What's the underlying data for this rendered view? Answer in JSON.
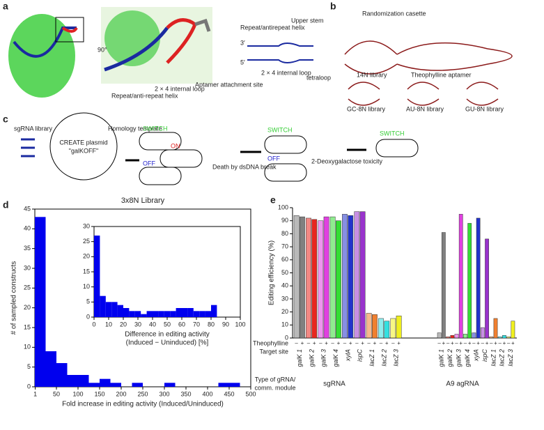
{
  "panels": [
    "a",
    "b",
    "c",
    "d",
    "e"
  ],
  "panel_a": {
    "helix": "Repeat/anti-repeat helix",
    "loop": "2 × 4 internal loop",
    "attach": "Aptamer attachment site",
    "rot": "90°",
    "helix2": "Repeat/antirepeat helix",
    "upper": "Upper stem",
    "loop2": "2 × 4 internal loop",
    "tetra": "tetraloop",
    "p3": "3′",
    "p5": "5′"
  },
  "panel_b": {
    "rand": "Randomization casette",
    "lib14": "14N library",
    "aptamer": "Theophylline aptamer",
    "gc": "GC-8N library",
    "au": "AU-8N library",
    "gu": "GU-8N library"
  },
  "panel_c": {
    "lib": "sgRNA library",
    "homology": "Homology template",
    "plasmid": "CREATE plasmid",
    "galk": "\"galKOFF\"",
    "switch": "SWITCH",
    "on": "ON",
    "off": "OFF",
    "death": "Death by dsDNA break",
    "toxicity": "2-Deoxygalactose toxicity"
  },
  "chart_data": [
    {
      "type": "histogram",
      "title": "3x8N Library",
      "xlabel": "Fold increase in editing activity (Induced/Uninduced)",
      "ylabel": "# of sampled constructs",
      "color": "#0000ee",
      "bins": [
        0,
        25,
        50,
        75,
        100,
        125,
        150,
        175,
        200,
        225,
        250,
        275,
        300,
        325,
        350,
        375,
        400,
        425,
        450,
        475,
        500
      ],
      "values": [
        43,
        9,
        6,
        3,
        3,
        1,
        2,
        1,
        0,
        1,
        0,
        0,
        1,
        0,
        0,
        0,
        0,
        1,
        1,
        0
      ],
      "xlim": [
        0,
        500
      ],
      "xticks": [
        1,
        50,
        100,
        150,
        200,
        250,
        300,
        350,
        400,
        450,
        500
      ],
      "ylim": [
        0,
        45
      ],
      "yticks": [
        0,
        5,
        10,
        15,
        20,
        25,
        30,
        35,
        40,
        45
      ]
    },
    {
      "type": "histogram",
      "xlabel": "Difference in editing activity",
      "xlabel2": "(Induced − Uninduced) [%]",
      "color": "#0000ee",
      "bins": [
        0,
        4,
        8,
        12,
        16,
        20,
        24,
        28,
        32,
        36,
        40,
        44,
        48,
        52,
        56,
        60,
        64,
        68,
        72,
        76,
        80,
        84
      ],
      "values": [
        27,
        7,
        5,
        5,
        4,
        3,
        2,
        2,
        1,
        2,
        2,
        2,
        2,
        2,
        3,
        3,
        3,
        2,
        2,
        2,
        4
      ],
      "xlim": [
        0,
        100
      ],
      "xticks": [
        0,
        10,
        20,
        30,
        40,
        50,
        60,
        70,
        80,
        90,
        100
      ],
      "ylim": [
        0,
        30
      ],
      "yticks": [
        0,
        5,
        10,
        15,
        20,
        25,
        30
      ]
    },
    {
      "type": "bar",
      "ylabel": "Editing efficiency (%)",
      "ylim": [
        0,
        100
      ],
      "yticks": [
        0,
        10,
        20,
        30,
        40,
        50,
        60,
        70,
        80,
        90,
        100
      ],
      "row_theophylline": "Theophylline",
      "row_target": "Target site",
      "row_type": "Type of gRNA/",
      "row_type2": "comm. module",
      "theophylline": [
        "–",
        "+"
      ],
      "categories": [
        "galK 1",
        "galK 2",
        "galK 3",
        "galK 4",
        "xylA",
        "ispC",
        "lacZ 1",
        "lacZ 2",
        "lacZ 3"
      ],
      "colors": [
        "#808080",
        "#e8261f",
        "#e040e0",
        "#33dd33",
        "#2233cc",
        "#9933cc",
        "#f08030",
        "#33e0e0",
        "#f0f020"
      ],
      "groups": [
        {
          "name": "sgRNA",
          "minus": [
            94,
            92,
            90,
            93,
            95,
            97,
            19,
            15,
            15
          ],
          "plus": [
            93,
            91,
            93,
            90,
            94,
            97,
            18,
            13,
            17
          ]
        },
        {
          "name": "A9 agRNA",
          "minus": [
            4,
            1,
            3,
            3,
            4,
            8,
            1,
            1,
            1
          ],
          "plus": [
            81,
            2,
            95,
            88,
            92,
            76,
            15,
            2,
            13
          ]
        }
      ]
    }
  ]
}
